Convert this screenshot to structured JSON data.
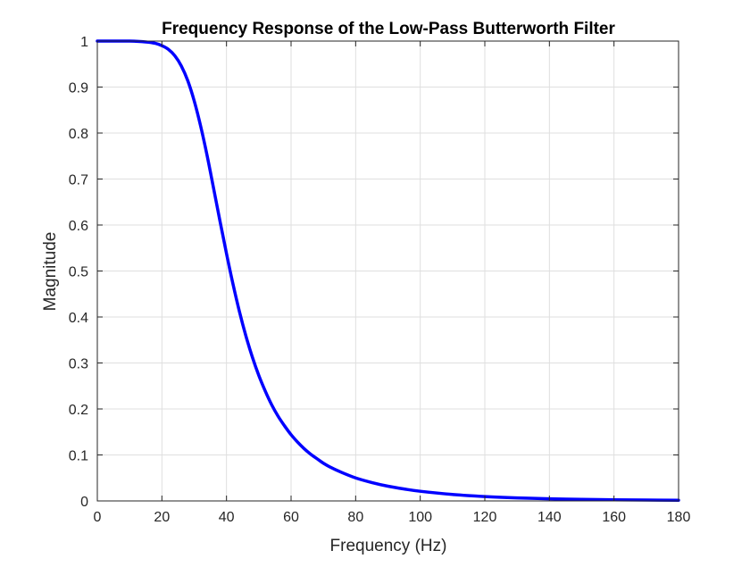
{
  "chart_data": {
    "type": "line",
    "title": "Frequency Response of the Low-Pass Butterworth Filter",
    "xlabel": "Frequency (Hz)",
    "ylabel": "Magnitude",
    "xlim": [
      0,
      180
    ],
    "ylim": [
      0,
      1
    ],
    "grid": true,
    "xticks": [
      0,
      20,
      40,
      60,
      80,
      100,
      120,
      140,
      160,
      180
    ],
    "xtick_labels": [
      "0",
      "20",
      "40",
      "60",
      "80",
      "100",
      "120",
      "140",
      "160",
      "180"
    ],
    "yticks": [
      0,
      0.1,
      0.2,
      0.3,
      0.4,
      0.5,
      0.6,
      0.7,
      0.8,
      0.9,
      1
    ],
    "ytick_labels": [
      "0",
      "0.1",
      "0.2",
      "0.3",
      "0.4",
      "0.5",
      "0.6",
      "0.7",
      "0.8",
      "0.9",
      "1"
    ],
    "series": [
      {
        "color": "#0000ff",
        "x": [
          0,
          5,
          10,
          15,
          18,
          20,
          22,
          24,
          26,
          28,
          30,
          32,
          34,
          36,
          38,
          40,
          42,
          44,
          46,
          48,
          50,
          52,
          54,
          56,
          58,
          60,
          62,
          64,
          66,
          68,
          70,
          72,
          75,
          80,
          85,
          90,
          95,
          100,
          110,
          120,
          130,
          140,
          150,
          160,
          170,
          180
        ],
        "y": [
          1.0,
          1.0,
          0.9999,
          0.998,
          0.995,
          0.99,
          0.982,
          0.968,
          0.946,
          0.914,
          0.87,
          0.815,
          0.751,
          0.68,
          0.608,
          0.538,
          0.472,
          0.412,
          0.359,
          0.313,
          0.273,
          0.239,
          0.209,
          0.184,
          0.163,
          0.144,
          0.128,
          0.114,
          0.102,
          0.092,
          0.082,
          0.074,
          0.064,
          0.05,
          0.04,
          0.032,
          0.026,
          0.021,
          0.014,
          0.0095,
          0.0066,
          0.0047,
          0.0034,
          0.0025,
          0.0019,
          0.0015
        ]
      }
    ]
  }
}
